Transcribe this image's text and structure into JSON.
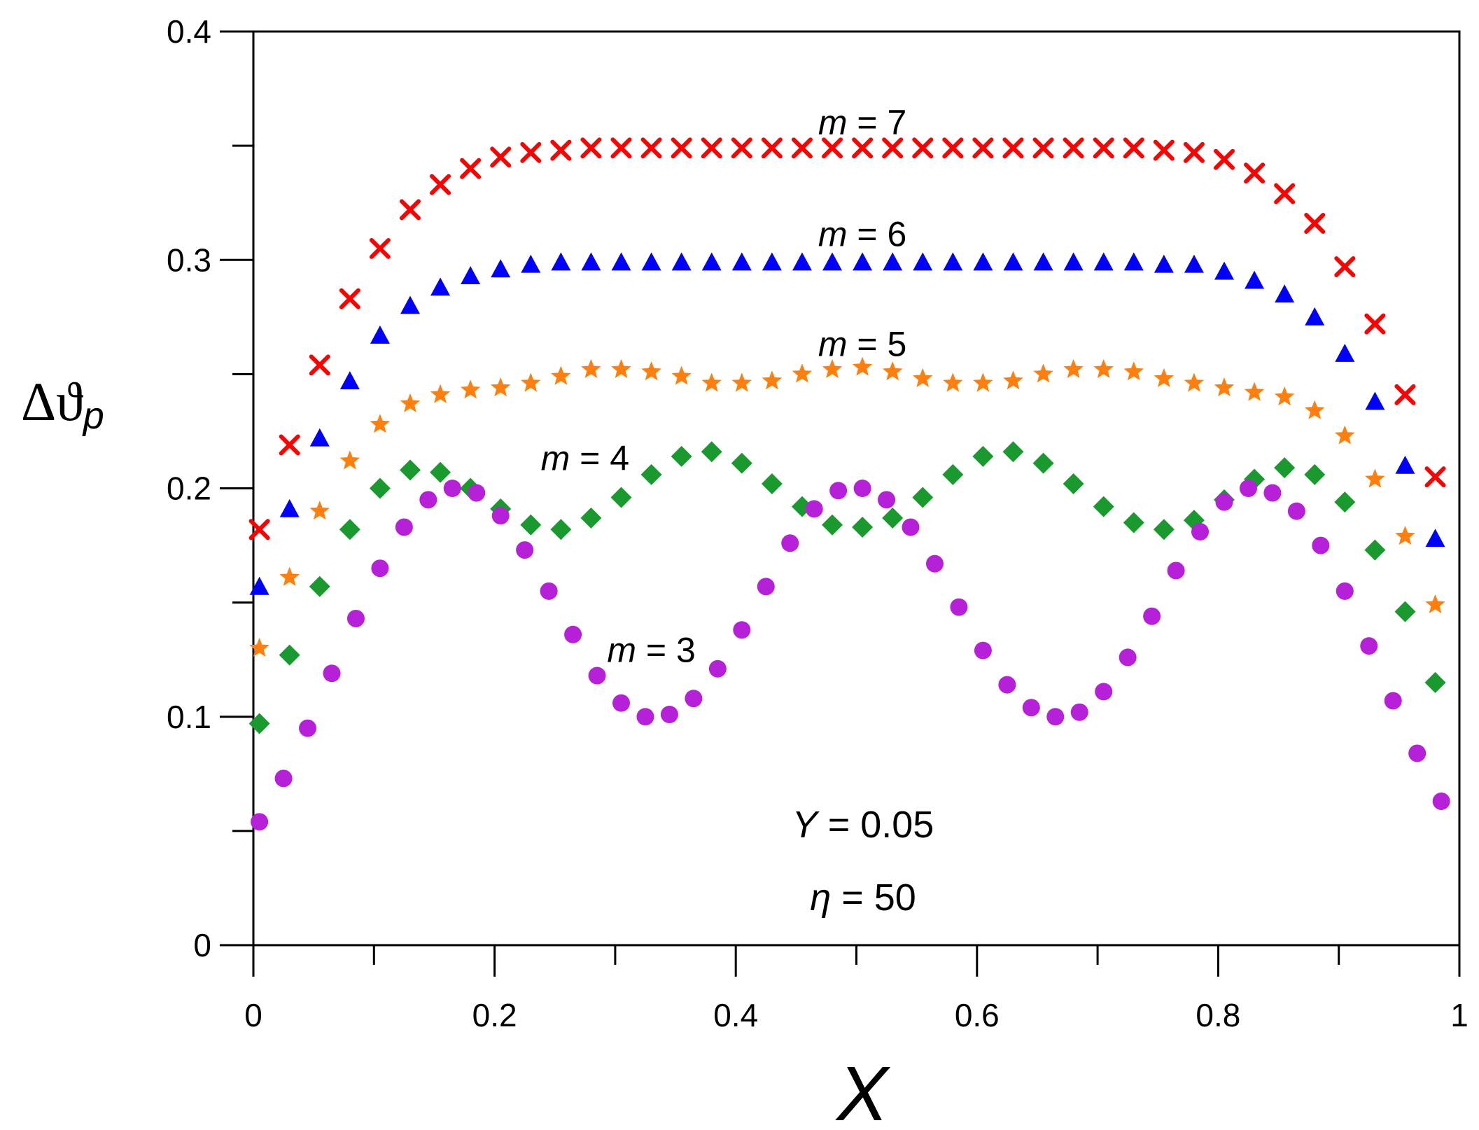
{
  "chart_data": {
    "type": "scatter",
    "xlabel": "X",
    "ylabel": {
      "main": "Δϑ",
      "subscript": "p"
    },
    "xlim": [
      0,
      1
    ],
    "ylim": [
      0,
      0.4
    ],
    "x_ticks": [
      "0",
      "0.2",
      "0.4",
      "0.6",
      "0.8",
      "1"
    ],
    "y_ticks": [
      "0",
      "0.1",
      "0.2",
      "0.3",
      "0.4"
    ],
    "annotations": {
      "y_param": {
        "symbol": "Y",
        "text": " = 0.05"
      },
      "eta_param": {
        "symbol": "η",
        "text": " = 50"
      }
    },
    "series": [
      {
        "name": "m = 7",
        "label_var": "m",
        "label_val": " = 7",
        "marker": "x",
        "color": "#ff0000",
        "x": [
          0.005,
          0.03,
          0.055,
          0.08,
          0.105,
          0.13,
          0.155,
          0.18,
          0.205,
          0.23,
          0.255,
          0.28,
          0.305,
          0.33,
          0.355,
          0.38,
          0.405,
          0.43,
          0.455,
          0.48,
          0.505,
          0.53,
          0.555,
          0.58,
          0.605,
          0.63,
          0.655,
          0.68,
          0.705,
          0.73,
          0.755,
          0.78,
          0.805,
          0.83,
          0.855,
          0.88,
          0.905,
          0.93,
          0.955,
          0.98
        ],
        "y": [
          0.182,
          0.219,
          0.254,
          0.283,
          0.305,
          0.322,
          0.333,
          0.34,
          0.345,
          0.347,
          0.348,
          0.349,
          0.349,
          0.349,
          0.349,
          0.349,
          0.349,
          0.349,
          0.349,
          0.349,
          0.349,
          0.349,
          0.349,
          0.349,
          0.349,
          0.349,
          0.349,
          0.349,
          0.349,
          0.349,
          0.348,
          0.347,
          0.344,
          0.338,
          0.329,
          0.316,
          0.297,
          0.272,
          0.241,
          0.205
        ]
      },
      {
        "name": "m = 6",
        "label_var": "m",
        "label_val": " = 6",
        "marker": "triangle",
        "color": "#0000ff",
        "x": [
          0.005,
          0.03,
          0.055,
          0.08,
          0.105,
          0.13,
          0.155,
          0.18,
          0.205,
          0.23,
          0.255,
          0.28,
          0.305,
          0.33,
          0.355,
          0.38,
          0.405,
          0.43,
          0.455,
          0.48,
          0.505,
          0.53,
          0.555,
          0.58,
          0.605,
          0.63,
          0.655,
          0.68,
          0.705,
          0.73,
          0.755,
          0.78,
          0.805,
          0.83,
          0.855,
          0.88,
          0.905,
          0.93,
          0.955,
          0.98
        ],
        "y": [
          0.157,
          0.191,
          0.222,
          0.247,
          0.267,
          0.28,
          0.288,
          0.293,
          0.296,
          0.298,
          0.299,
          0.299,
          0.299,
          0.299,
          0.299,
          0.299,
          0.299,
          0.299,
          0.299,
          0.299,
          0.299,
          0.299,
          0.299,
          0.299,
          0.299,
          0.299,
          0.299,
          0.299,
          0.299,
          0.299,
          0.298,
          0.298,
          0.295,
          0.291,
          0.285,
          0.275,
          0.259,
          0.238,
          0.21,
          0.178
        ]
      },
      {
        "name": "m = 5",
        "label_var": "m",
        "label_val": " = 5",
        "marker": "star",
        "color": "#ff7f0e",
        "x": [
          0.005,
          0.03,
          0.055,
          0.08,
          0.105,
          0.13,
          0.155,
          0.18,
          0.205,
          0.23,
          0.255,
          0.28,
          0.305,
          0.33,
          0.355,
          0.38,
          0.405,
          0.43,
          0.455,
          0.48,
          0.505,
          0.53,
          0.555,
          0.58,
          0.605,
          0.63,
          0.655,
          0.68,
          0.705,
          0.73,
          0.755,
          0.78,
          0.805,
          0.83,
          0.855,
          0.88,
          0.905,
          0.93,
          0.955,
          0.98
        ],
        "y": [
          0.13,
          0.161,
          0.19,
          0.212,
          0.228,
          0.237,
          0.241,
          0.243,
          0.244,
          0.246,
          0.249,
          0.252,
          0.252,
          0.251,
          0.249,
          0.246,
          0.246,
          0.247,
          0.25,
          0.252,
          0.253,
          0.251,
          0.248,
          0.246,
          0.246,
          0.247,
          0.25,
          0.252,
          0.252,
          0.251,
          0.248,
          0.246,
          0.244,
          0.242,
          0.24,
          0.234,
          0.223,
          0.204,
          0.179,
          0.149
        ]
      },
      {
        "name": "m = 4",
        "label_var": "m",
        "label_val": " = 4",
        "marker": "diamond",
        "color": "#1a9a2e",
        "x": [
          0.005,
          0.03,
          0.055,
          0.08,
          0.105,
          0.13,
          0.155,
          0.18,
          0.205,
          0.23,
          0.255,
          0.28,
          0.305,
          0.33,
          0.355,
          0.38,
          0.405,
          0.43,
          0.455,
          0.48,
          0.505,
          0.53,
          0.555,
          0.58,
          0.605,
          0.63,
          0.655,
          0.68,
          0.705,
          0.73,
          0.755,
          0.78,
          0.805,
          0.83,
          0.855,
          0.88,
          0.905,
          0.93,
          0.955,
          0.98
        ],
        "y": [
          0.097,
          0.127,
          0.157,
          0.182,
          0.2,
          0.208,
          0.207,
          0.2,
          0.191,
          0.184,
          0.182,
          0.187,
          0.196,
          0.206,
          0.214,
          0.216,
          0.211,
          0.202,
          0.192,
          0.184,
          0.183,
          0.187,
          0.196,
          0.206,
          0.214,
          0.216,
          0.211,
          0.202,
          0.192,
          0.185,
          0.182,
          0.186,
          0.195,
          0.204,
          0.209,
          0.206,
          0.194,
          0.173,
          0.146,
          0.115
        ]
      },
      {
        "name": "m = 3",
        "label_var": "m",
        "label_val": " = 3",
        "marker": "circle",
        "color": "#b620d8",
        "x": [
          0.005,
          0.025,
          0.045,
          0.065,
          0.085,
          0.105,
          0.125,
          0.145,
          0.165,
          0.185,
          0.205,
          0.225,
          0.245,
          0.265,
          0.285,
          0.305,
          0.325,
          0.345,
          0.365,
          0.385,
          0.405,
          0.425,
          0.445,
          0.465,
          0.485,
          0.505,
          0.525,
          0.545,
          0.565,
          0.585,
          0.605,
          0.625,
          0.645,
          0.665,
          0.685,
          0.705,
          0.725,
          0.745,
          0.765,
          0.785,
          0.805,
          0.825,
          0.845,
          0.865,
          0.885,
          0.905,
          0.925,
          0.945,
          0.965,
          0.985
        ],
        "y": [
          0.054,
          0.073,
          0.095,
          0.119,
          0.143,
          0.165,
          0.183,
          0.195,
          0.2,
          0.198,
          0.188,
          0.173,
          0.155,
          0.136,
          0.118,
          0.106,
          0.1,
          0.101,
          0.108,
          0.121,
          0.138,
          0.157,
          0.176,
          0.191,
          0.199,
          0.2,
          0.195,
          0.183,
          0.167,
          0.148,
          0.129,
          0.114,
          0.104,
          0.1,
          0.102,
          0.111,
          0.126,
          0.144,
          0.164,
          0.181,
          0.194,
          0.2,
          0.198,
          0.19,
          0.175,
          0.155,
          0.131,
          0.107,
          0.084,
          0.063
        ]
      }
    ],
    "series_labels": [
      {
        "series": 0,
        "at": [
          0.505,
          0.355
        ]
      },
      {
        "series": 1,
        "at": [
          0.505,
          0.306
        ]
      },
      {
        "series": 2,
        "at": [
          0.505,
          0.258
        ]
      },
      {
        "series": 3,
        "at": [
          0.275,
          0.208
        ]
      },
      {
        "series": 4,
        "at": [
          0.33,
          0.124
        ]
      }
    ]
  }
}
